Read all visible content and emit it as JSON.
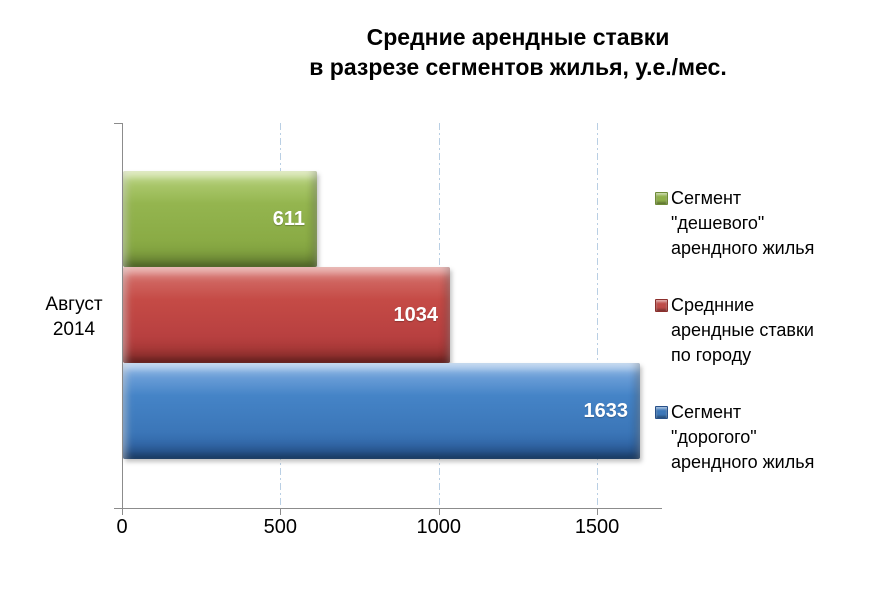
{
  "title": "Средние арендные ставки\nв разрезе сегментов жилья, у.е./мес.",
  "category_label": "Август\n2014",
  "legend": {
    "items": [
      {
        "label": "Сегмент\n\"дешевого\"\nарендного жилья",
        "color": "#94B54F"
      },
      {
        "label": "Среднние\nарендные ставки\nпо городу",
        "color": "#C54B46"
      },
      {
        "label": "Сегмент\n\"дорогого\"\nарендного жилья",
        "color": "#4584C7"
      }
    ]
  },
  "colors": {
    "bar_green": "#94B54F",
    "bar_red": "#C54B46",
    "bar_blue": "#4584C7",
    "gridline": "#B9CFE4",
    "axis": "#8C8C8C",
    "data_label_text": "#FFFFFF"
  },
  "chart_data": {
    "type": "bar",
    "orientation": "horizontal",
    "title": "Средние арендные ставки в разрезе сегментов жилья, у.е./мес.",
    "categories": [
      "Август 2014"
    ],
    "series": [
      {
        "name": "Сегмент \"дешевого\" арендного жилья",
        "values": [
          611
        ],
        "color": "#94B54F"
      },
      {
        "name": "Среднние арендные ставки по городу",
        "values": [
          1034
        ],
        "color": "#C54B46"
      },
      {
        "name": "Сегмент \"дорогого\" арендного жилья",
        "values": [
          1633
        ],
        "color": "#4584C7"
      }
    ],
    "x_ticks": [
      0,
      500,
      1000,
      1500
    ],
    "xlim": [
      0,
      1705
    ],
    "xlabel": "",
    "ylabel": "",
    "grid": true,
    "grid_style": "dash-dot",
    "legend_position": "right",
    "data_labels": true
  }
}
